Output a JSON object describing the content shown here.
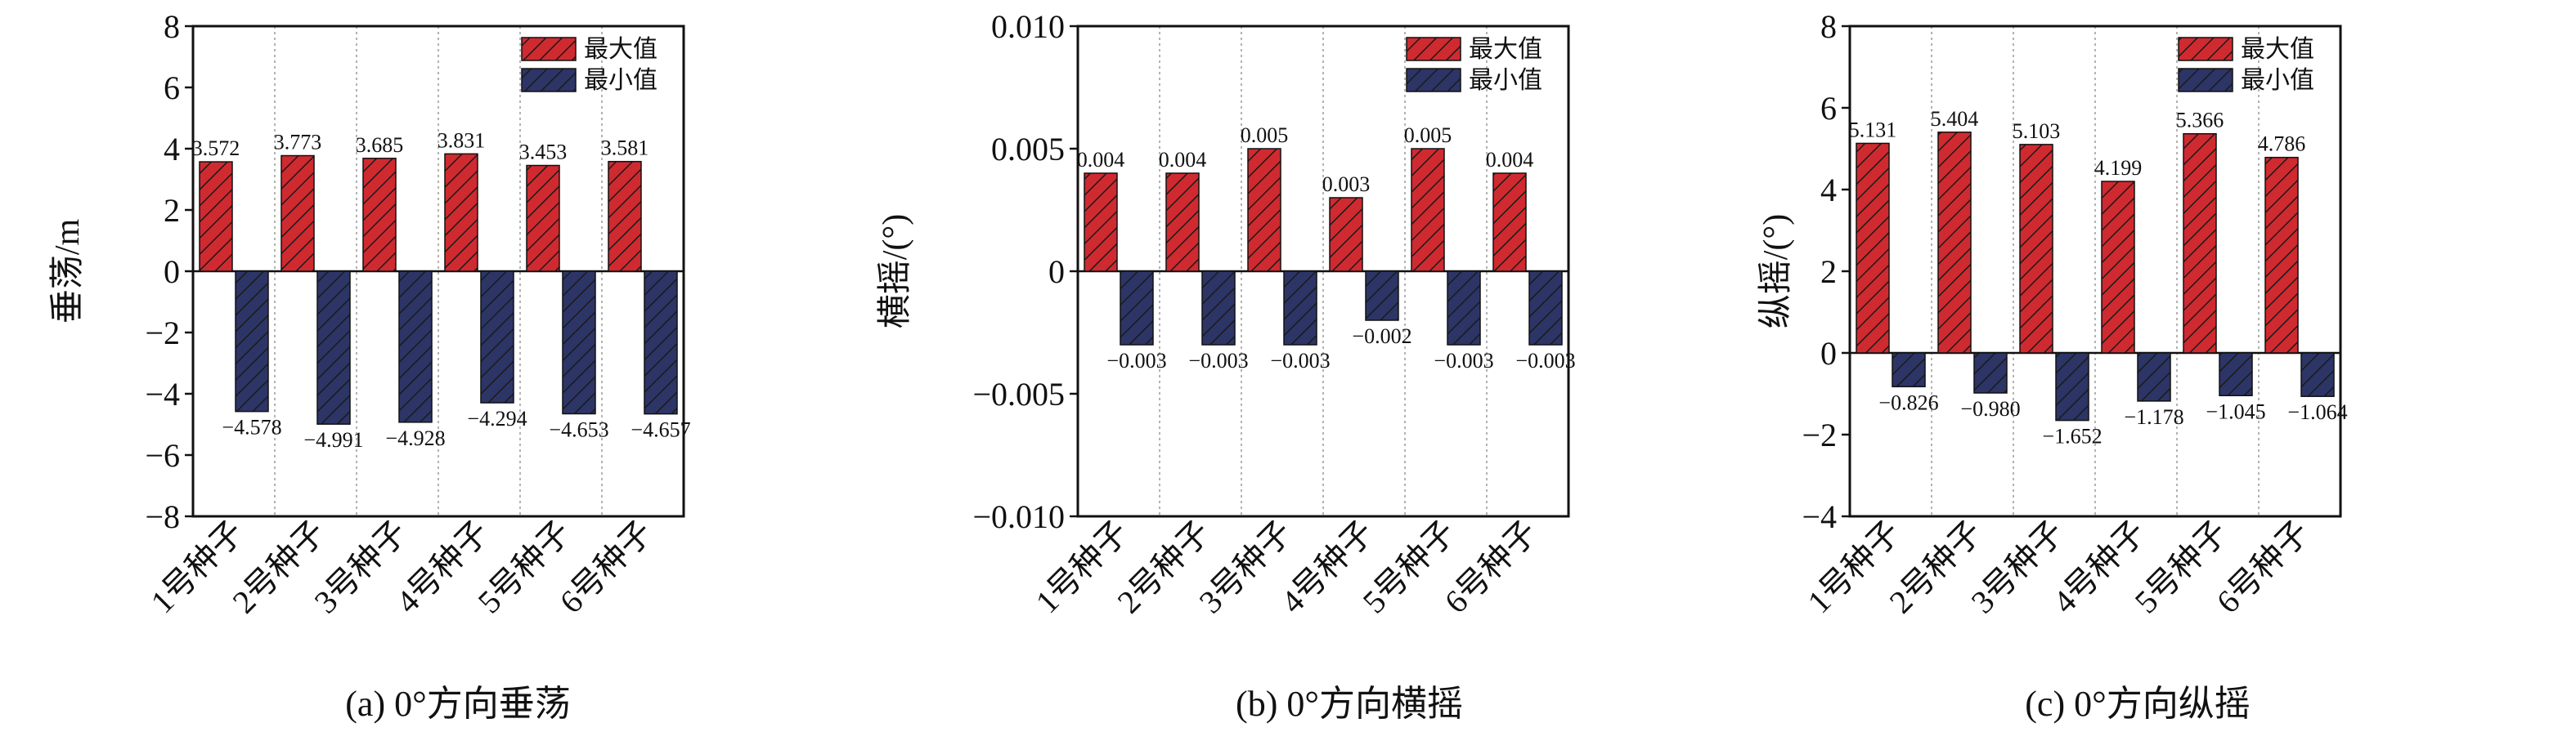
{
  "colors": {
    "max_fill": "#cf2a30",
    "min_fill": "#2c3566",
    "hatch": "#1a1a1a",
    "axis": "#111111",
    "divider": "#9a9a9a"
  },
  "chart_data": [
    {
      "type": "bar",
      "caption": "(a) 0°方向垂荡",
      "ylabel": "垂荡/m",
      "categories": [
        "1号种子",
        "2号种子",
        "3号种子",
        "4号种子",
        "5号种子",
        "6号种子"
      ],
      "ylim": [
        -8,
        8
      ],
      "yticks": [
        -8,
        -6,
        -4,
        -2,
        0,
        2,
        4,
        6,
        8
      ],
      "ytick_labels": [
        "−8",
        "−6",
        "−4",
        "−2",
        "0",
        "2",
        "4",
        "6",
        "8"
      ],
      "legend_position": "top-right",
      "grid": false,
      "series": [
        {
          "name": "最大值",
          "values": [
            3.572,
            3.773,
            3.685,
            3.831,
            3.453,
            3.581
          ],
          "labels": [
            "3.572",
            "3.773",
            "3.685",
            "3.831",
            "3.453",
            "3.581"
          ]
        },
        {
          "name": "最小值",
          "values": [
            -4.578,
            -4.991,
            -4.928,
            -4.294,
            -4.653,
            -4.657
          ],
          "labels": [
            "−4.578",
            "−4.991",
            "−4.928",
            "−4.294",
            "−4.653",
            "−4.657"
          ]
        }
      ]
    },
    {
      "type": "bar",
      "caption": "(b) 0°方向横摇",
      "ylabel": "横摇/(°)",
      "categories": [
        "1号种子",
        "2号种子",
        "3号种子",
        "4号种子",
        "5号种子",
        "6号种子"
      ],
      "ylim": [
        -0.01,
        0.01
      ],
      "yticks": [
        -0.01,
        -0.005,
        0,
        0.005,
        0.01
      ],
      "ytick_labels": [
        "−0.010",
        "−0.005",
        "0",
        "0.005",
        "0.010"
      ],
      "legend_position": "top-right",
      "grid": false,
      "series": [
        {
          "name": "最大值",
          "values": [
            0.004,
            0.004,
            0.005,
            0.003,
            0.005,
            0.004
          ],
          "labels": [
            "0.004",
            "0.004",
            "0.005",
            "0.003",
            "0.005",
            "0.004"
          ]
        },
        {
          "name": "最小值",
          "values": [
            -0.003,
            -0.003,
            -0.003,
            -0.002,
            -0.003,
            -0.003
          ],
          "labels": [
            "−0.003",
            "−0.003",
            "−0.003",
            "−0.002",
            "−0.003",
            "−0.003"
          ]
        }
      ]
    },
    {
      "type": "bar",
      "caption": "(c) 0°方向纵摇",
      "ylabel": "纵摇/(°)",
      "categories": [
        "1号种子",
        "2号种子",
        "3号种子",
        "4号种子",
        "5号种子",
        "6号种子"
      ],
      "ylim": [
        -4,
        8
      ],
      "yticks": [
        -4,
        -2,
        0,
        2,
        4,
        6,
        8
      ],
      "ytick_labels": [
        "−4",
        "−2",
        "0",
        "2",
        "4",
        "6",
        "8"
      ],
      "legend_position": "top-right",
      "grid": false,
      "series": [
        {
          "name": "最大值",
          "values": [
            5.131,
            5.404,
            5.103,
            4.199,
            5.366,
            4.786
          ],
          "labels": [
            "5.131",
            "5.404",
            "5.103",
            "4.199",
            "5.366",
            "4.786"
          ]
        },
        {
          "name": "最小值",
          "values": [
            -0.826,
            -0.98,
            -1.652,
            -1.178,
            -1.045,
            -1.064
          ],
          "labels": [
            "−0.826",
            "−0.980",
            "−1.652",
            "−1.178",
            "−1.045",
            "−1.064"
          ]
        }
      ]
    }
  ]
}
